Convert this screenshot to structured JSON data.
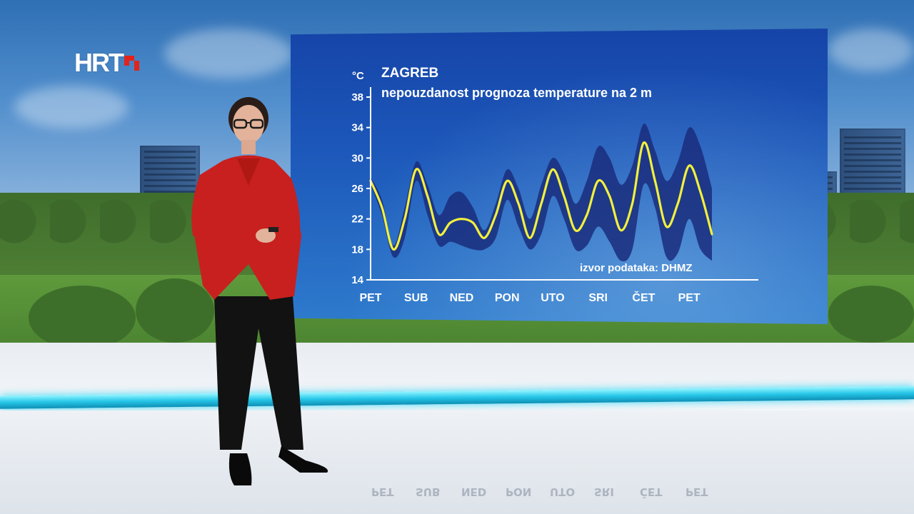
{
  "broadcaster_logo": {
    "text": "HRT",
    "checker_colors": [
      "#e2231a",
      "#ffffff"
    ]
  },
  "chart_data": {
    "type": "line",
    "title": "ZAGREB",
    "subtitle": "nepouzdanost prognoza temperature na 2 m",
    "unit": "°C",
    "source": "izvor podataka: DHMZ",
    "x_labels": [
      "PET",
      "SUB",
      "NED",
      "PON",
      "UTO",
      "SRI",
      "ČET",
      "PET"
    ],
    "ylim": [
      14,
      38
    ],
    "yticks": [
      14,
      18,
      22,
      26,
      30,
      34,
      38
    ],
    "x_range_days": [
      0,
      7.5
    ],
    "series": [
      {
        "x": [
          0,
          0.25,
          0.5,
          0.75,
          1.0,
          1.25,
          1.5,
          1.75,
          2.0,
          2.25,
          2.5,
          2.75,
          3.0,
          3.25,
          3.5,
          3.75,
          4.0,
          4.25,
          4.5,
          4.75,
          5.0,
          5.25,
          5.5,
          5.75,
          6.0,
          6.25,
          6.5,
          6.75,
          7.0,
          7.25,
          7.5
        ],
        "mean": [
          27.0,
          23.5,
          18.0,
          22.0,
          28.5,
          25.0,
          20.0,
          21.5,
          22.0,
          21.5,
          19.5,
          22.5,
          27.0,
          24.0,
          19.5,
          24.0,
          28.5,
          25.0,
          20.5,
          22.5,
          27.0,
          25.0,
          20.5,
          24.0,
          32.0,
          27.0,
          21.0,
          24.0,
          29.0,
          25.5,
          20.0
        ],
        "upper": [
          27.5,
          24.5,
          18.5,
          23.5,
          29.5,
          26.5,
          22.5,
          25.0,
          25.5,
          23.5,
          20.5,
          24.0,
          28.5,
          26.0,
          22.0,
          26.5,
          30.0,
          28.0,
          24.0,
          27.0,
          31.5,
          30.0,
          26.5,
          29.0,
          34.5,
          31.0,
          27.0,
          29.5,
          34.0,
          31.5,
          26.0
        ],
        "lower": [
          26.5,
          22.5,
          17.0,
          19.5,
          27.0,
          22.5,
          18.5,
          19.0,
          18.5,
          18.0,
          18.0,
          19.5,
          24.5,
          21.0,
          18.0,
          20.0,
          25.0,
          22.0,
          18.0,
          18.5,
          21.0,
          19.0,
          16.5,
          18.0,
          26.5,
          23.5,
          17.0,
          17.5,
          22.0,
          18.0,
          16.5
        ]
      }
    ],
    "mean_color": "#f2f03c",
    "band_color": "#1a2d7c",
    "axis_color": "#ffffff"
  },
  "floor_reflection": [
    "PET",
    "SUB",
    "NED",
    "PON",
    "UTO",
    "SRI",
    "ČET",
    "PET"
  ]
}
